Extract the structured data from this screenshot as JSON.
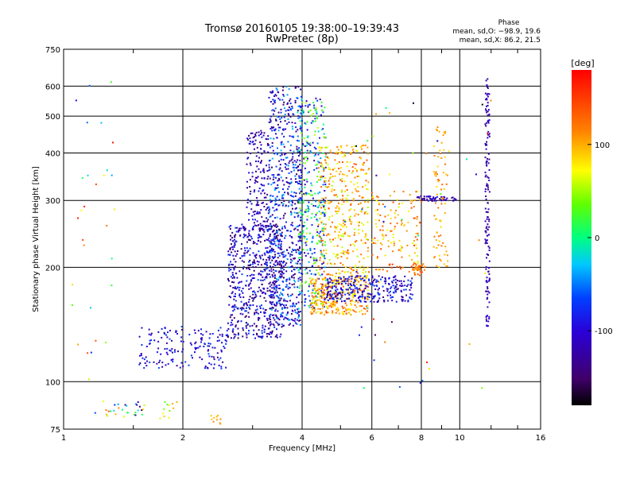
{
  "chart_data": {
    "type": "scatter",
    "title": "Tromsø 20160105 19:38:00–19:39:43",
    "subtitle": "RwPretec (8p)",
    "xlabel": "Frequency [MHz]",
    "ylabel": "Stationary phase Virtual Height [km]",
    "x_scale": "log",
    "y_scale": "log",
    "xlim": [
      1,
      16
    ],
    "ylim": [
      75,
      750
    ],
    "x_ticks": [
      1,
      2,
      4,
      6,
      8,
      10,
      16
    ],
    "x_tick_labels": [
      "1",
      "2",
      "4",
      "6",
      "8",
      "10",
      "16"
    ],
    "y_ticks": [
      75,
      100,
      200,
      300,
      400,
      500,
      600,
      750
    ],
    "y_tick_labels": [
      "75",
      "100",
      "200",
      "300",
      "400",
      "500",
      "600",
      "750"
    ],
    "grid": true,
    "stats_header": "Phase",
    "stats_lines": [
      "mean, sd,O: −98.9, 19.6",
      "mean, sd,X: 86.2, 21.5"
    ],
    "colorbar": {
      "label": "[deg]",
      "range": [
        -180,
        180
      ],
      "ticks": [
        100,
        0,
        -100
      ],
      "tick_labels": [
        "100",
        "0",
        "-100"
      ]
    },
    "point_groups": [
      {
        "x": [
          1.2,
          1.6
        ],
        "y": [
          80,
          90
        ],
        "c": [
          -150,
          160
        ],
        "n": 30,
        "jitter": 0.02
      },
      {
        "x": [
          1.05,
          1.4
        ],
        "y": [
          100,
          620
        ],
        "c": [
          -120,
          170
        ],
        "n": 30,
        "jitter": 0.02
      },
      {
        "x": [
          1.55,
          2.6
        ],
        "y": [
          108,
          140
        ],
        "c": [
          -140,
          -60
        ],
        "n": 170,
        "jitter": 0.02
      },
      {
        "x": [
          1.75,
          1.95
        ],
        "y": [
          80,
          90
        ],
        "c": [
          20,
          110
        ],
        "n": 12,
        "jitter": 0.01
      },
      {
        "x": [
          2.35,
          2.5
        ],
        "y": [
          77,
          82
        ],
        "c": [
          90,
          130
        ],
        "n": 10,
        "jitter": 0.01
      },
      {
        "x": [
          2.6,
          3.6
        ],
        "y": [
          130,
          260
        ],
        "c": [
          -160,
          -60
        ],
        "n": 620,
        "jitter": 0.03
      },
      {
        "x": [
          2.9,
          3.3
        ],
        "y": [
          250,
          460
        ],
        "c": [
          -150,
          -80
        ],
        "n": 160,
        "jitter": 0.03
      },
      {
        "x": [
          3.3,
          4.0
        ],
        "y": [
          140,
          600
        ],
        "c": [
          -160,
          -30
        ],
        "n": 650,
        "jitter": 0.03
      },
      {
        "x": [
          3.9,
          4.6
        ],
        "y": [
          155,
          560
        ],
        "c": [
          -130,
          60
        ],
        "n": 430,
        "jitter": 0.03
      },
      {
        "x": [
          4.2,
          5.9
        ],
        "y": [
          150,
          190
        ],
        "c": [
          60,
          150
        ],
        "n": 320,
        "jitter": 0.03
      },
      {
        "x": [
          4.4,
          5.9
        ],
        "y": [
          190,
          420
        ],
        "c": [
          50,
          140
        ],
        "n": 380,
        "jitter": 0.03
      },
      {
        "x": [
          4.6,
          7.6
        ],
        "y": [
          162,
          190
        ],
        "c": [
          -140,
          -60
        ],
        "n": 280,
        "jitter": 0.02
      },
      {
        "x": [
          6.0,
          8.0
        ],
        "y": [
          195,
          320
        ],
        "c": [
          60,
          150
        ],
        "n": 140,
        "jitter": 0.03
      },
      {
        "x": [
          7.6,
          8.2
        ],
        "y": [
          190,
          205
        ],
        "c": [
          100,
          140
        ],
        "n": 40,
        "jitter": 0.01
      },
      {
        "x": [
          7.8,
          9.8
        ],
        "y": [
          298,
          308
        ],
        "c": [
          -140,
          -90
        ],
        "n": 50,
        "jitter": 0.01
      },
      {
        "x": [
          8.6,
          9.4
        ],
        "y": [
          200,
          470
        ],
        "c": [
          80,
          130
        ],
        "n": 80,
        "jitter": 0.02
      },
      {
        "x": [
          11.6,
          11.9
        ],
        "y": [
          140,
          630
        ],
        "c": [
          -140,
          -100
        ],
        "n": 150,
        "jitter": 0.005
      },
      {
        "x": [
          5.0,
          12.0
        ],
        "y": [
          95,
          560
        ],
        "c": [
          -180,
          180
        ],
        "n": 50,
        "jitter": 0.02
      }
    ],
    "series_notes": "Ionogram scatter: each point is a sounding echo, colored by phase in degrees."
  }
}
